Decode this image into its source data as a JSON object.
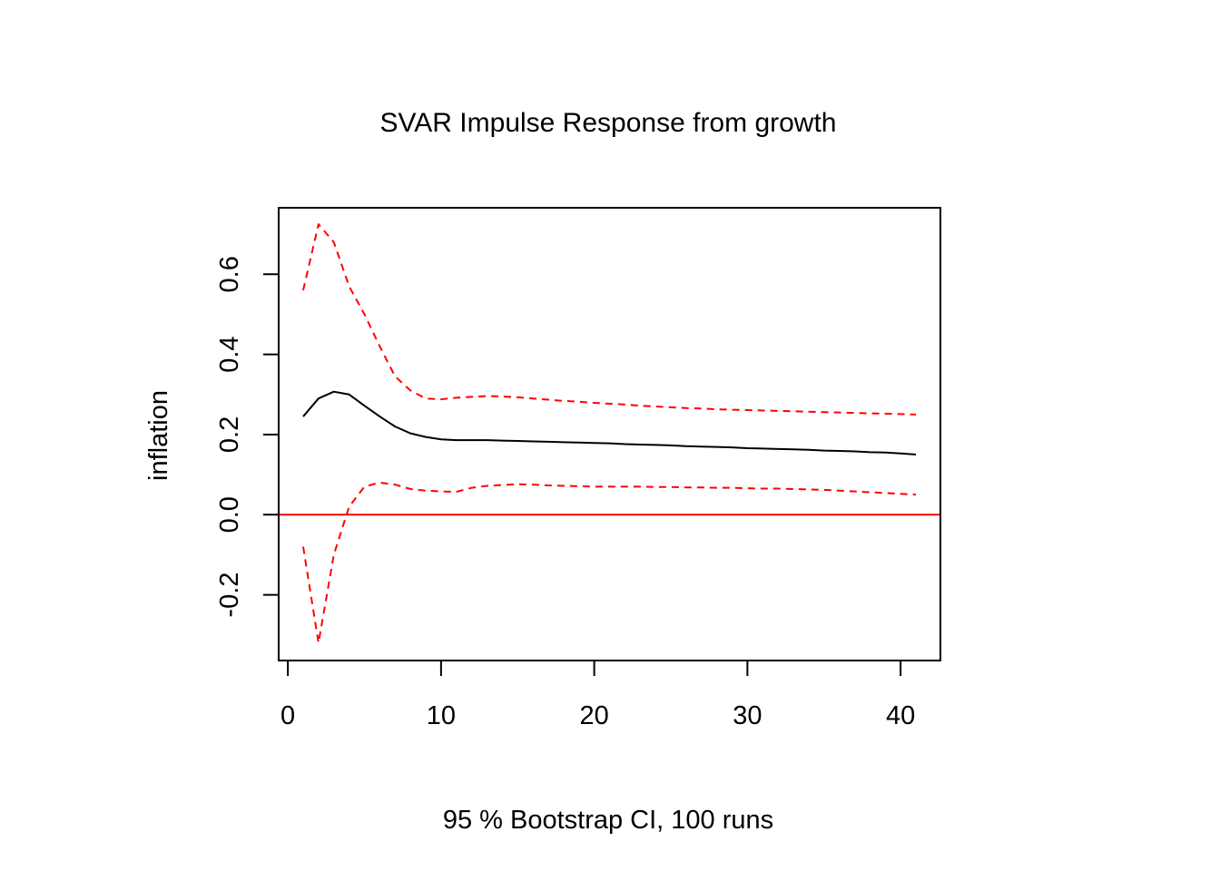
{
  "chart_data": {
    "type": "line",
    "title": "SVAR Impulse Response from growth",
    "xlabel": "95 % Bootstrap CI,  100 runs",
    "ylabel": "inflation",
    "xlim": [
      -0.6,
      42.6
    ],
    "ylim": [
      -0.364,
      0.766
    ],
    "xticks": [
      0,
      10,
      20,
      30,
      40
    ],
    "xtick_labels": [
      "0",
      "10",
      "20",
      "30",
      "40"
    ],
    "yticks": [
      -0.2,
      0.0,
      0.2,
      0.4,
      0.6
    ],
    "ytick_labels": [
      "-0.2",
      "0.0",
      "0.2",
      "0.4",
      "0.6"
    ],
    "grid": false,
    "legend": "none",
    "reference_line": {
      "y": 0.0,
      "color": "#ff0000"
    },
    "x": [
      1,
      2,
      3,
      4,
      5,
      6,
      7,
      8,
      9,
      10,
      11,
      12,
      13,
      14,
      15,
      16,
      17,
      18,
      19,
      20,
      21,
      22,
      23,
      24,
      25,
      26,
      27,
      28,
      29,
      30,
      31,
      32,
      33,
      34,
      35,
      36,
      37,
      38,
      39,
      40,
      41
    ],
    "series": [
      {
        "role": "irf",
        "color": "#000000",
        "dash": "solid",
        "values": [
          0.245,
          0.29,
          0.307,
          0.3,
          0.272,
          0.245,
          0.22,
          0.203,
          0.194,
          0.188,
          0.186,
          0.186,
          0.186,
          0.185,
          0.184,
          0.183,
          0.182,
          0.181,
          0.18,
          0.179,
          0.178,
          0.176,
          0.175,
          0.174,
          0.173,
          0.171,
          0.17,
          0.169,
          0.168,
          0.166,
          0.165,
          0.164,
          0.163,
          0.162,
          0.16,
          0.159,
          0.158,
          0.156,
          0.155,
          0.153,
          0.15
        ]
      },
      {
        "role": "upper",
        "color": "#ff0000",
        "dash": "dashed",
        "values": [
          0.56,
          0.725,
          0.68,
          0.57,
          0.5,
          0.42,
          0.345,
          0.31,
          0.29,
          0.288,
          0.292,
          0.294,
          0.296,
          0.295,
          0.293,
          0.29,
          0.287,
          0.284,
          0.282,
          0.279,
          0.277,
          0.275,
          0.272,
          0.27,
          0.268,
          0.266,
          0.265,
          0.263,
          0.262,
          0.261,
          0.26,
          0.259,
          0.258,
          0.257,
          0.256,
          0.255,
          0.254,
          0.253,
          0.252,
          0.251,
          0.25
        ]
      },
      {
        "role": "lower",
        "color": "#ff0000",
        "dash": "dashed",
        "values": [
          -0.08,
          -0.32,
          -0.1,
          0.02,
          0.07,
          0.08,
          0.075,
          0.064,
          0.06,
          0.058,
          0.057,
          0.067,
          0.072,
          0.074,
          0.076,
          0.075,
          0.073,
          0.072,
          0.071,
          0.07,
          0.07,
          0.07,
          0.07,
          0.069,
          0.069,
          0.068,
          0.068,
          0.067,
          0.067,
          0.066,
          0.065,
          0.065,
          0.064,
          0.063,
          0.062,
          0.06,
          0.058,
          0.056,
          0.054,
          0.052,
          0.05
        ]
      }
    ]
  }
}
